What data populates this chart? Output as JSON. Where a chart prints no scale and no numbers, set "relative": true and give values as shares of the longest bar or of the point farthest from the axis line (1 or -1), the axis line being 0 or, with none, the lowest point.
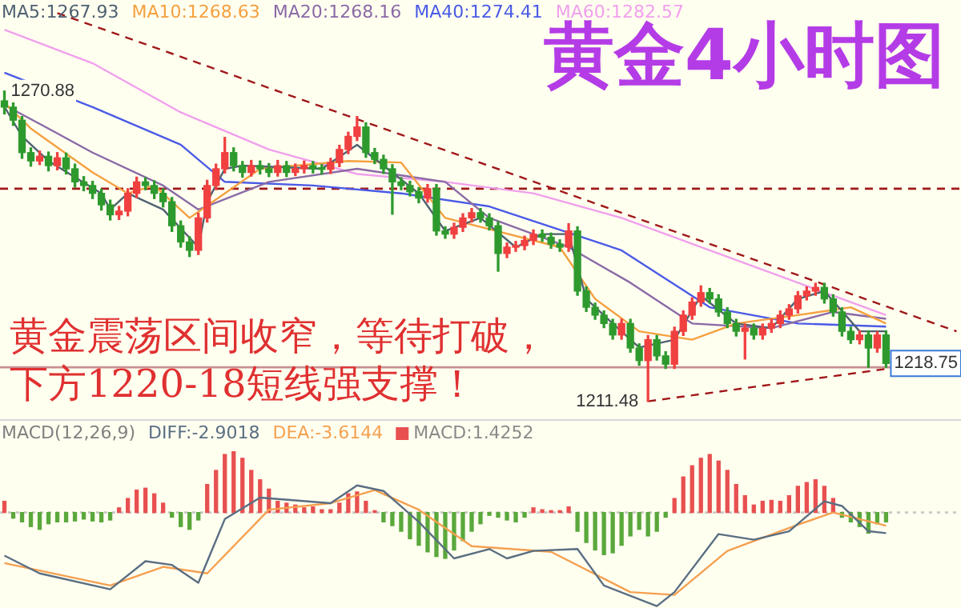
{
  "chart_data": [
    {
      "type": "candlestick",
      "title": "黄金4小时图",
      "categories": [
        null,
        null,
        null,
        null,
        null,
        null,
        null,
        null,
        null,
        null,
        null,
        null,
        null,
        null,
        null,
        null,
        null,
        null,
        null,
        null,
        null,
        null,
        null,
        null,
        null,
        null,
        null,
        null,
        null,
        null,
        null,
        null,
        null,
        null,
        null,
        null,
        null,
        null,
        null,
        null,
        null,
        null,
        null,
        null,
        null,
        null,
        null,
        null,
        null,
        null,
        null,
        null,
        null,
        null,
        null,
        null,
        null,
        null,
        null,
        null,
        null,
        null,
        null,
        null,
        null,
        null,
        null,
        null,
        null,
        null,
        null,
        null,
        null,
        null,
        null,
        null,
        null,
        null,
        null,
        null,
        null,
        null,
        null,
        null,
        null,
        null,
        null,
        null,
        null,
        null,
        null,
        null,
        null,
        null,
        null,
        null,
        null,
        null,
        null,
        null,
        null,
        null,
        null,
        null,
        null,
        null,
        null,
        null,
        null
      ],
      "ohlc": [
        [
          1269.0,
          1270.88,
          1266.5,
          1267.8
        ],
        [
          1267.8,
          1268.6,
          1264.3,
          1265.3
        ],
        [
          1265.3,
          1266.0,
          1258.0,
          1259.1
        ],
        [
          1259.1,
          1260.0,
          1256.5,
          1257.5
        ],
        [
          1257.5,
          1259.4,
          1256.8,
          1258.4
        ],
        [
          1258.4,
          1259.2,
          1255.6,
          1256.6
        ],
        [
          1256.6,
          1259.1,
          1255.8,
          1258.1
        ],
        [
          1258.1,
          1259.0,
          1255.0,
          1256.0
        ],
        [
          1256.0,
          1256.9,
          1252.5,
          1253.5
        ],
        [
          1253.5,
          1254.5,
          1251.8,
          1252.8
        ],
        [
          1252.8,
          1253.6,
          1250.3,
          1251.3
        ],
        [
          1251.3,
          1252.1,
          1248.1,
          1249.1
        ],
        [
          1249.1,
          1250.0,
          1246.2,
          1247.2
        ],
        [
          1247.2,
          1248.8,
          1246.3,
          1247.9
        ],
        [
          1247.9,
          1252.2,
          1247.0,
          1251.3
        ],
        [
          1251.3,
          1254.4,
          1250.5,
          1253.5
        ],
        [
          1253.5,
          1254.3,
          1252.0,
          1252.8
        ],
        [
          1252.8,
          1253.7,
          1250.3,
          1251.3
        ],
        [
          1251.3,
          1252.2,
          1248.7,
          1249.7
        ],
        [
          1249.7,
          1250.5,
          1244.0,
          1245.1
        ],
        [
          1245.1,
          1246.0,
          1241.0,
          1242.0
        ],
        [
          1242.0,
          1243.0,
          1239.2,
          1240.4
        ],
        [
          1240.4,
          1247.5,
          1239.6,
          1246.6
        ],
        [
          1246.6,
          1253.8,
          1245.8,
          1252.8
        ],
        [
          1252.8,
          1256.9,
          1252.0,
          1256.0
        ],
        [
          1256.0,
          1262.0,
          1255.2,
          1259.1
        ],
        [
          1259.1,
          1260.0,
          1255.6,
          1256.6
        ],
        [
          1256.6,
          1257.4,
          1254.4,
          1255.3
        ],
        [
          1255.3,
          1257.6,
          1254.6,
          1256.6
        ],
        [
          1256.6,
          1257.5,
          1255.0,
          1256.0
        ],
        [
          1256.0,
          1257.0,
          1254.5,
          1255.3
        ],
        [
          1255.3,
          1257.6,
          1254.6,
          1256.6
        ],
        [
          1256.6,
          1257.4,
          1254.5,
          1255.3
        ],
        [
          1255.3,
          1256.9,
          1254.7,
          1256.0
        ],
        [
          1256.0,
          1257.5,
          1255.2,
          1256.6
        ],
        [
          1256.6,
          1257.4,
          1255.2,
          1256.0
        ],
        [
          1256.0,
          1256.8,
          1255.0,
          1255.9
        ],
        [
          1255.9,
          1258.0,
          1255.1,
          1257.2
        ],
        [
          1257.2,
          1260.5,
          1256.4,
          1259.7
        ],
        [
          1259.7,
          1263.0,
          1258.9,
          1262.2
        ],
        [
          1262.2,
          1266.0,
          1261.4,
          1264.0
        ],
        [
          1264.0,
          1264.8,
          1258.2,
          1259.1
        ],
        [
          1259.1,
          1259.9,
          1257.0,
          1257.8
        ],
        [
          1257.8,
          1258.6,
          1255.1,
          1256.0
        ],
        [
          1256.0,
          1256.8,
          1247.3,
          1253.5
        ],
        [
          1253.5,
          1254.3,
          1252.0,
          1252.8
        ],
        [
          1252.8,
          1253.6,
          1250.8,
          1251.6
        ],
        [
          1251.6,
          1252.4,
          1249.5,
          1250.4
        ],
        [
          1250.4,
          1253.0,
          1249.6,
          1252.2
        ],
        [
          1252.2,
          1253.0,
          1243.3,
          1244.1
        ],
        [
          1244.1,
          1244.9,
          1242.7,
          1243.5
        ],
        [
          1243.5,
          1245.6,
          1242.7,
          1244.8
        ],
        [
          1244.8,
          1247.4,
          1244.0,
          1246.6
        ],
        [
          1246.6,
          1248.4,
          1245.8,
          1247.6
        ],
        [
          1247.6,
          1248.4,
          1245.8,
          1246.6
        ],
        [
          1246.6,
          1247.4,
          1244.3,
          1245.1
        ],
        [
          1245.1,
          1245.9,
          1236.4,
          1239.8
        ],
        [
          1239.8,
          1241.8,
          1239.0,
          1241.0
        ],
        [
          1241.0,
          1242.1,
          1240.2,
          1241.3
        ],
        [
          1241.3,
          1243.1,
          1240.5,
          1242.3
        ],
        [
          1242.3,
          1244.3,
          1241.5,
          1243.5
        ],
        [
          1243.5,
          1244.3,
          1242.1,
          1242.9
        ],
        [
          1242.9,
          1243.7,
          1240.8,
          1241.6
        ],
        [
          1241.6,
          1242.4,
          1240.2,
          1241.0
        ],
        [
          1241.0,
          1245.5,
          1240.2,
          1244.1
        ],
        [
          1244.1,
          1244.9,
          1231.8,
          1232.6
        ],
        [
          1232.6,
          1233.4,
          1228.7,
          1229.5
        ],
        [
          1229.5,
          1230.3,
          1227.2,
          1228.0
        ],
        [
          1228.0,
          1228.8,
          1225.6,
          1226.4
        ],
        [
          1226.4,
          1227.2,
          1223.4,
          1224.2
        ],
        [
          1224.2,
          1227.2,
          1223.4,
          1226.4
        ],
        [
          1226.4,
          1227.2,
          1220.9,
          1221.7
        ],
        [
          1221.7,
          1222.5,
          1218.4,
          1219.3
        ],
        [
          1219.3,
          1224.1,
          1211.48,
          1223.3
        ],
        [
          1223.3,
          1224.1,
          1219.4,
          1220.2
        ],
        [
          1220.2,
          1221.0,
          1217.8,
          1218.6
        ],
        [
          1218.6,
          1225.7,
          1217.8,
          1224.9
        ],
        [
          1224.9,
          1228.8,
          1224.1,
          1228.0
        ],
        [
          1228.0,
          1231.3,
          1227.2,
          1230.5
        ],
        [
          1230.5,
          1233.6,
          1229.7,
          1232.3
        ],
        [
          1232.3,
          1233.1,
          1230.3,
          1231.1
        ],
        [
          1231.1,
          1231.9,
          1227.8,
          1228.6
        ],
        [
          1228.6,
          1229.4,
          1225.6,
          1226.4
        ],
        [
          1226.4,
          1227.2,
          1224.0,
          1224.9
        ],
        [
          1224.9,
          1226.3,
          1219.6,
          1225.5
        ],
        [
          1225.5,
          1226.3,
          1223.4,
          1224.2
        ],
        [
          1224.2,
          1226.3,
          1223.4,
          1225.5
        ],
        [
          1225.5,
          1227.2,
          1224.7,
          1226.4
        ],
        [
          1226.4,
          1228.8,
          1225.6,
          1228.0
        ],
        [
          1228.0,
          1230.0,
          1227.2,
          1229.2
        ],
        [
          1229.2,
          1232.5,
          1228.4,
          1231.7
        ],
        [
          1231.7,
          1233.4,
          1230.9,
          1232.6
        ],
        [
          1232.6,
          1234.1,
          1231.8,
          1233.3
        ],
        [
          1233.3,
          1234.1,
          1230.3,
          1231.1
        ],
        [
          1231.1,
          1231.9,
          1227.8,
          1228.6
        ],
        [
          1228.6,
          1229.4,
          1224.0,
          1224.9
        ],
        [
          1224.9,
          1225.7,
          1222.6,
          1223.3
        ],
        [
          1223.3,
          1225.0,
          1222.5,
          1224.2
        ],
        [
          1224.2,
          1225.0,
          1218.0,
          1221.7
        ],
        [
          1221.7,
          1224.8,
          1220.9,
          1224.2
        ],
        [
          1224.2,
          1225.0,
          1218.0,
          1218.75
        ],
        null,
        null,
        null,
        null,
        null,
        null,
        null,
        null
      ],
      "series": [
        {
          "name": "MA5:1267.93",
          "type": "line",
          "color": "#4e6070",
          "values": [
            1267.9,
            null,
            1262.2,
            null,
            null,
            1257.5,
            null,
            null,
            null,
            null,
            null,
            1251.3,
            1248.2,
            null,
            1251.3,
            null,
            null,
            null,
            1248.2,
            null,
            null,
            null,
            1241.0,
            1249.7,
            null,
            1256.0,
            null,
            1256.6,
            null,
            null,
            null,
            null,
            null,
            null,
            null,
            null,
            1256.0,
            null,
            null,
            null,
            1260.6,
            null,
            null,
            1256.6,
            null,
            null,
            null,
            1251.3,
            null,
            null,
            1244.1,
            null,
            null,
            null,
            1246.6,
            null,
            null,
            null,
            1241.0,
            null,
            null,
            1243.5,
            null,
            null,
            1243.5,
            null,
            1231.1,
            null,
            null,
            1226.4,
            null,
            null,
            1221.8,
            null,
            null,
            null,
            1223.3,
            null,
            null,
            1231.7,
            null,
            null,
            null,
            1226.4,
            null,
            null,
            null,
            1225.5,
            null,
            null,
            1231.1,
            null,
            null,
            1232.6,
            null,
            null,
            null,
            1224.9,
            null,
            null,
            1224.9,
            null,
            null,
            null,
            null,
            null,
            null,
            null,
            null
          ]
        },
        {
          "name": "MA10:1268.63",
          "type": "line",
          "color": "#f5a040",
          "values": [
            1268.6,
            null,
            null,
            1263.7,
            null,
            null,
            null,
            null,
            null,
            null,
            1255.3,
            null,
            null,
            null,
            1251.3,
            null,
            null,
            1252.8,
            null,
            null,
            null,
            1246.6,
            null,
            null,
            null,
            1251.3,
            null,
            null,
            null,
            1256.0,
            null,
            null,
            null,
            null,
            null,
            null,
            null,
            null,
            null,
            1257.5,
            null,
            null,
            null,
            null,
            null,
            1257.2,
            null,
            null,
            null,
            null,
            1246.6,
            null,
            null,
            null,
            null,
            null,
            null,
            null,
            null,
            null,
            null,
            null,
            null,
            1241.0,
            null,
            null,
            null,
            1231.1,
            null,
            null,
            null,
            null,
            1224.9,
            null,
            null,
            null,
            null,
            null,
            1223.3,
            null,
            null,
            null,
            null,
            1226.4,
            null,
            null,
            null,
            null,
            null,
            null,
            1228.0,
            null,
            null,
            null,
            null,
            null,
            1229.5,
            null,
            null,
            null,
            1226.4,
            null,
            null,
            null,
            null,
            null,
            null,
            null,
            null
          ]
        },
        {
          "name": "MA20:1268.16",
          "type": "line",
          "color": "#8a6aa6",
          "values": [
            1268.2,
            null,
            null,
            null,
            null,
            1263.7,
            null,
            null,
            null,
            null,
            1259.1,
            null,
            null,
            null,
            null,
            null,
            null,
            null,
            1252.8,
            null,
            null,
            null,
            1248.2,
            null,
            null,
            null,
            null,
            null,
            null,
            null,
            1253.5,
            null,
            null,
            null,
            null,
            null,
            null,
            null,
            null,
            null,
            1256.0,
            null,
            null,
            null,
            null,
            null,
            null,
            null,
            null,
            null,
            1253.5,
            null,
            null,
            null,
            null,
            1246.6,
            null,
            null,
            null,
            null,
            null,
            null,
            null,
            null,
            1241.0,
            null,
            null,
            null,
            null,
            null,
            null,
            1234.2,
            null,
            null,
            null,
            null,
            null,
            null,
            1226.4,
            null,
            null,
            null,
            null,
            null,
            null,
            null,
            null,
            1225.5,
            null,
            null,
            null,
            null,
            null,
            null,
            1228.6,
            null,
            null,
            null,
            null,
            null,
            1227.3,
            null,
            null,
            null,
            null,
            null,
            null,
            null,
            null
          ]
        },
        {
          "name": "MA40:1274.41",
          "type": "line",
          "color": "#4a5ae6",
          "values": [
            1274.4,
            null,
            null,
            null,
            null,
            null,
            null,
            null,
            null,
            null,
            1267.8,
            null,
            null,
            null,
            null,
            null,
            null,
            null,
            null,
            null,
            1260.6,
            null,
            null,
            null,
            null,
            1253.5,
            null,
            null,
            null,
            null,
            null,
            null,
            null,
            null,
            null,
            1252.8,
            null,
            null,
            null,
            null,
            null,
            null,
            null,
            null,
            null,
            1251.3,
            null,
            null,
            null,
            null,
            null,
            null,
            null,
            null,
            null,
            1248.8,
            null,
            null,
            null,
            null,
            null,
            null,
            null,
            null,
            null,
            null,
            null,
            null,
            null,
            null,
            1240.4,
            null,
            null,
            null,
            null,
            null,
            null,
            null,
            null,
            null,
            1229.5,
            null,
            null,
            null,
            null,
            null,
            null,
            null,
            null,
            null,
            1226.4,
            null,
            null,
            null,
            null,
            null,
            null,
            null,
            null,
            null,
            1225.8,
            null,
            null,
            null,
            null,
            null,
            null,
            null,
            null
          ]
        },
        {
          "name": "MA60:1282.57",
          "type": "line",
          "color": "#f0a0ec",
          "values": [
            1282.6,
            null,
            null,
            null,
            null,
            null,
            null,
            null,
            null,
            null,
            1276.2,
            null,
            null,
            null,
            null,
            null,
            null,
            null,
            null,
            null,
            1266.8,
            null,
            null,
            null,
            null,
            null,
            null,
            null,
            null,
            null,
            1259.7,
            null,
            null,
            null,
            null,
            null,
            null,
            null,
            null,
            null,
            1255.0,
            null,
            null,
            null,
            null,
            null,
            null,
            null,
            null,
            null,
            1253.5,
            null,
            null,
            null,
            null,
            null,
            null,
            null,
            null,
            null,
            1251.3,
            null,
            null,
            null,
            null,
            null,
            null,
            null,
            null,
            null,
            1246.6,
            null,
            null,
            null,
            null,
            null,
            null,
            null,
            null,
            null,
            1240.4,
            null,
            null,
            null,
            null,
            null,
            null,
            null,
            null,
            null,
            1234.2,
            null,
            null,
            null,
            null,
            null,
            null,
            null,
            null,
            null,
            1228.0,
            null,
            null,
            null,
            null,
            null,
            null,
            null,
            null
          ]
        },
        {
          "type": "line",
          "color": "#a01818",
          "line_style": "dashed",
          "values": [
            null,
            null,
            null,
            null,
            null,
            null,
            1285.8,
            null,
            null,
            null,
            null,
            null,
            null,
            null,
            null,
            null,
            null,
            null,
            null,
            null,
            null,
            null,
            null,
            null,
            null,
            null,
            null,
            null,
            null,
            null,
            null,
            null,
            null,
            null,
            null,
            null,
            null,
            null,
            null,
            null,
            null,
            null,
            null,
            null,
            null,
            null,
            null,
            null,
            null,
            null,
            null,
            null,
            null,
            null,
            null,
            null,
            null,
            null,
            null,
            null,
            null,
            null,
            null,
            null,
            null,
            null,
            null,
            null,
            null,
            null,
            null,
            null,
            null,
            null,
            null,
            null,
            null,
            null,
            null,
            null,
            null,
            null,
            null,
            null,
            null,
            null,
            null,
            null,
            null,
            null,
            null,
            null,
            null,
            null,
            null,
            null,
            null,
            null,
            null,
            null,
            null,
            null,
            null,
            null,
            null,
            null,
            null,
            null,
            1224.9
          ]
        },
        {
          "type": "line",
          "color": "#a01818",
          "line_style": "dashed",
          "values": [
            null,
            null,
            null,
            null,
            null,
            null,
            null,
            null,
            null,
            null,
            null,
            null,
            null,
            null,
            null,
            null,
            null,
            null,
            null,
            null,
            null,
            null,
            null,
            null,
            null,
            null,
            null,
            null,
            null,
            null,
            null,
            null,
            null,
            null,
            null,
            null,
            null,
            null,
            null,
            null,
            null,
            null,
            null,
            null,
            null,
            null,
            null,
            null,
            null,
            null,
            null,
            null,
            null,
            null,
            null,
            null,
            null,
            null,
            null,
            null,
            null,
            null,
            null,
            null,
            null,
            null,
            null,
            null,
            null,
            null,
            null,
            null,
            null,
            1211.5,
            null,
            null,
            null,
            null,
            null,
            null,
            null,
            null,
            null,
            null,
            null,
            null,
            null,
            null,
            null,
            null,
            null,
            null,
            null,
            null,
            null,
            null,
            null,
            null,
            null,
            null,
            1217.7,
            null,
            null,
            null,
            null,
            null,
            null,
            null,
            null
          ]
        }
      ],
      "tick_labels": false,
      "legend": "top left",
      "ref_lines": [
        {
          "axis": "y",
          "value": 1252.2,
          "color": "#a01818",
          "line_style": "dashed"
        },
        {
          "axis": "y",
          "value": 1218.0,
          "color": "#c89090",
          "line_style": "solid"
        }
      ],
      "annotations": [
        "黄金震荡区间收窄，等待打破，",
        "下方1220-18短线强支撑！",
        {
          "text": "1270.88",
          "y": 1270.88
        },
        "1211.48",
        {
          "text": "1218.75",
          "y": 1218.75
        }
      ]
    },
    {
      "type": "bar",
      "relative": true,
      "legend_title": "MACD(12,26,9)",
      "legend": "top left",
      "tick_labels": false,
      "categories": [
        null,
        null,
        null,
        null,
        null,
        null,
        null,
        null,
        null,
        null,
        null,
        null,
        null,
        null,
        null,
        null,
        null,
        null,
        null,
        null,
        null,
        null,
        null,
        null,
        null,
        null,
        null,
        null,
        null,
        null,
        null,
        null,
        null,
        null,
        null,
        null,
        null,
        null,
        null,
        null,
        null,
        null,
        null,
        null,
        null,
        null,
        null,
        null,
        null,
        null,
        null,
        null,
        null,
        null,
        null,
        null,
        null,
        null,
        null,
        null,
        null,
        null,
        null,
        null,
        null,
        null,
        null,
        null,
        null,
        null,
        null,
        null,
        null,
        null,
        null,
        null,
        null,
        null,
        null,
        null,
        null,
        null,
        null,
        null,
        null,
        null,
        null,
        null,
        null,
        null,
        null,
        null,
        null,
        null,
        null,
        null,
        null,
        null,
        null,
        null,
        null,
        null,
        null,
        null,
        null,
        null,
        null,
        null,
        null
      ],
      "series": [
        {
          "name": "DIFF:-2.9018",
          "type": "line",
          "color": "#5a6e82",
          "values": [
            -0.46,
            null,
            null,
            null,
            -0.65,
            null,
            null,
            null,
            null,
            null,
            null,
            null,
            -0.82,
            null,
            null,
            null,
            -0.52,
            null,
            null,
            -0.56,
            null,
            null,
            -0.75,
            null,
            null,
            -0.07,
            null,
            null,
            null,
            0.16,
            null,
            null,
            null,
            0.13,
            null,
            null,
            null,
            0.1,
            null,
            null,
            0.29,
            null,
            null,
            0.23,
            null,
            null,
            null,
            -0.1,
            null,
            null,
            null,
            -0.49,
            null,
            null,
            null,
            -0.39,
            null,
            -0.49,
            null,
            null,
            -0.41,
            null,
            null,
            null,
            null,
            -0.39,
            null,
            null,
            -0.78,
            null,
            null,
            null,
            null,
            null,
            -1,
            null,
            -0.85,
            null,
            null,
            null,
            null,
            -0.23,
            null,
            null,
            null,
            -0.29,
            null,
            null,
            null,
            -0.2,
            null,
            null,
            null,
            0.12,
            null,
            0.07,
            null,
            null,
            -0.2,
            null,
            -0.22,
            null,
            null,
            null,
            null,
            null,
            null,
            null,
            null
          ]
        },
        {
          "name": "DEA:-3.6144",
          "type": "line",
          "color": "#f5a050",
          "values": [
            -0.54,
            null,
            null,
            null,
            null,
            null,
            null,
            null,
            null,
            null,
            null,
            null,
            -0.78,
            null,
            null,
            null,
            null,
            null,
            -0.58,
            null,
            null,
            null,
            null,
            -0.65,
            null,
            null,
            null,
            null,
            null,
            null,
            0.03,
            null,
            null,
            null,
            null,
            null,
            null,
            0.1,
            null,
            null,
            null,
            null,
            0.24,
            null,
            null,
            null,
            null,
            0.03,
            null,
            null,
            null,
            null,
            null,
            -0.36,
            null,
            null,
            null,
            null,
            null,
            null,
            null,
            null,
            -0.42,
            null,
            null,
            null,
            null,
            null,
            null,
            null,
            null,
            -0.85,
            null,
            null,
            null,
            null,
            -0.88,
            null,
            null,
            null,
            null,
            null,
            -0.41,
            null,
            null,
            null,
            null,
            null,
            null,
            null,
            -0.13,
            null,
            null,
            null,
            0,
            null,
            null,
            null,
            null,
            null,
            -0.14,
            null,
            null,
            null,
            null,
            null,
            null,
            null,
            null
          ]
        },
        {
          "name": "MACD:1.4252",
          "type": "bar",
          "color": "#8a8a8a",
          "colors": [
            "#e85050",
            "#5aa83c",
            "#5aa83c",
            "#5aa83c",
            "#5aa83c",
            "#5aa83c",
            "#5aa83c",
            "#5aa83c",
            "#5aa83c",
            "#5aa83c",
            "#5aa83c",
            "#5aa83c",
            "#5aa83c",
            "#e85050",
            "#e85050",
            "#e85050",
            "#e85050",
            "#e85050",
            "#e85050",
            "#5aa83c",
            "#5aa83c",
            "#5aa83c",
            "#5aa83c",
            "#e85050",
            "#e85050",
            "#e85050",
            "#e85050",
            "#e85050",
            "#e85050",
            "#e85050",
            "#e85050",
            "#e85050",
            "#e85050",
            "#e85050",
            "#e85050",
            "#e85050",
            "#e85050",
            "#e85050",
            "#e85050",
            "#e85050",
            "#e85050",
            "#e85050",
            "#e85050",
            "#5aa83c",
            "#5aa83c",
            "#5aa83c",
            "#5aa83c",
            "#5aa83c",
            "#5aa83c",
            "#5aa83c",
            "#5aa83c",
            "#5aa83c",
            "#5aa83c",
            "#5aa83c",
            "#5aa83c",
            "#5aa83c",
            "#5aa83c",
            "#5aa83c",
            "#5aa83c",
            "#5aa83c",
            "#e85050",
            "#e85050",
            "#e85050",
            "#e85050",
            "#e85050",
            "#5aa83c",
            "#5aa83c",
            "#5aa83c",
            "#5aa83c",
            "#5aa83c",
            "#5aa83c",
            "#5aa83c",
            "#5aa83c",
            "#5aa83c",
            "#5aa83c",
            "#5aa83c",
            "#e85050",
            "#e85050",
            "#e85050",
            "#e85050",
            "#e85050",
            "#e85050",
            "#e85050",
            "#e85050",
            "#e85050",
            "#e85050",
            "#e85050",
            "#e85050",
            "#e85050",
            "#e85050",
            "#e85050",
            "#e85050",
            "#e85050",
            "#e85050",
            "#e85050",
            "#5aa83c",
            "#5aa83c",
            "#5aa83c",
            "#5aa83c",
            "#5aa83c",
            "#5aa83c",
            null,
            null,
            null,
            null,
            null,
            null,
            null,
            null
          ],
          "values": [
            0.12,
            -0.06,
            -0.1,
            -0.15,
            -0.18,
            -0.12,
            -0.1,
            -0.1,
            -0.09,
            -0.07,
            -0.09,
            -0.1,
            -0.08,
            0.05,
            0.15,
            0.24,
            0.26,
            0.2,
            0.1,
            -0.05,
            -0.15,
            -0.18,
            -0.08,
            0.3,
            0.45,
            0.62,
            0.65,
            0.58,
            0.45,
            0.35,
            0.25,
            0.12,
            0.1,
            0.08,
            0.05,
            0.06,
            0.03,
            0.03,
            0.1,
            0.2,
            0.22,
            0.12,
            0.02,
            -0.1,
            -0.14,
            -0.2,
            -0.28,
            -0.35,
            -0.42,
            -0.47,
            -0.49,
            -0.4,
            -0.3,
            -0.2,
            -0.12,
            -0.03,
            -0.05,
            -0.08,
            -0.1,
            -0.05,
            0.05,
            0.03,
            0.02,
            0.02,
            0.06,
            -0.2,
            -0.32,
            -0.4,
            -0.45,
            -0.43,
            -0.35,
            -0.25,
            -0.18,
            -0.25,
            -0.2,
            -0.05,
            0.15,
            0.38,
            0.5,
            0.58,
            0.62,
            0.55,
            0.45,
            0.3,
            0.18,
            0.08,
            0.12,
            0.13,
            0.12,
            0.18,
            0.28,
            0.32,
            0.35,
            0.28,
            0.15,
            -0.05,
            -0.1,
            -0.15,
            -0.22,
            -0.12,
            -0.1,
            null,
            null,
            null,
            null,
            null,
            null,
            null,
            null
          ]
        }
      ],
      "ref_lines": [
        {
          "axis": "y",
          "value": 0,
          "color": "#c8c8c8",
          "line_style": "dotted"
        }
      ]
    }
  ]
}
